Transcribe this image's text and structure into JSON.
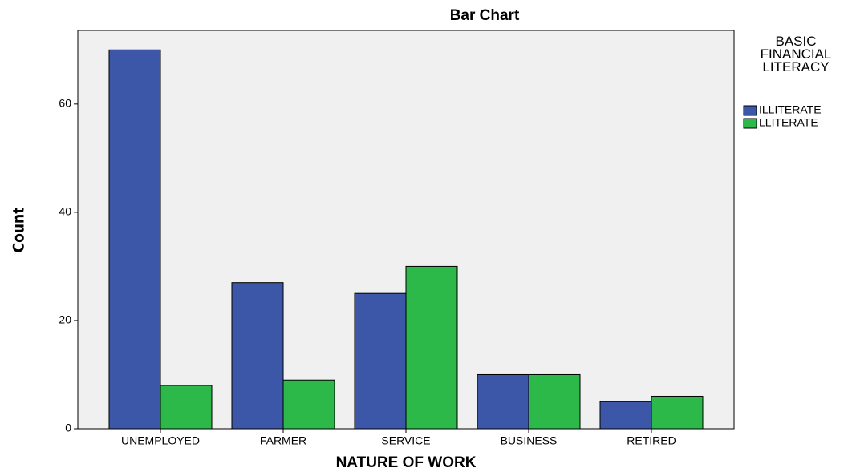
{
  "chart_data": {
    "type": "bar",
    "title": "Bar Chart",
    "x_label": "NATURE OF WORK",
    "y_label": "Count",
    "categories": [
      "UNEMPLOYED",
      "FARMER",
      "SERVICE",
      "BUSINESS",
      "RETIRED"
    ],
    "legend_title": "BASIC FINANCIAL LITERACY",
    "legend_position": "right",
    "series": [
      {
        "name": "ILLITERATE",
        "color": "#3c56a8",
        "values": [
          70,
          27,
          25,
          10,
          5
        ]
      },
      {
        "name": "LLITERATE",
        "color": "#2db84a",
        "values": [
          8,
          9,
          30,
          10,
          6
        ]
      }
    ],
    "ylim": [
      0,
      73.6
    ],
    "yticks": [
      0,
      20,
      40,
      60
    ],
    "grid": false
  }
}
